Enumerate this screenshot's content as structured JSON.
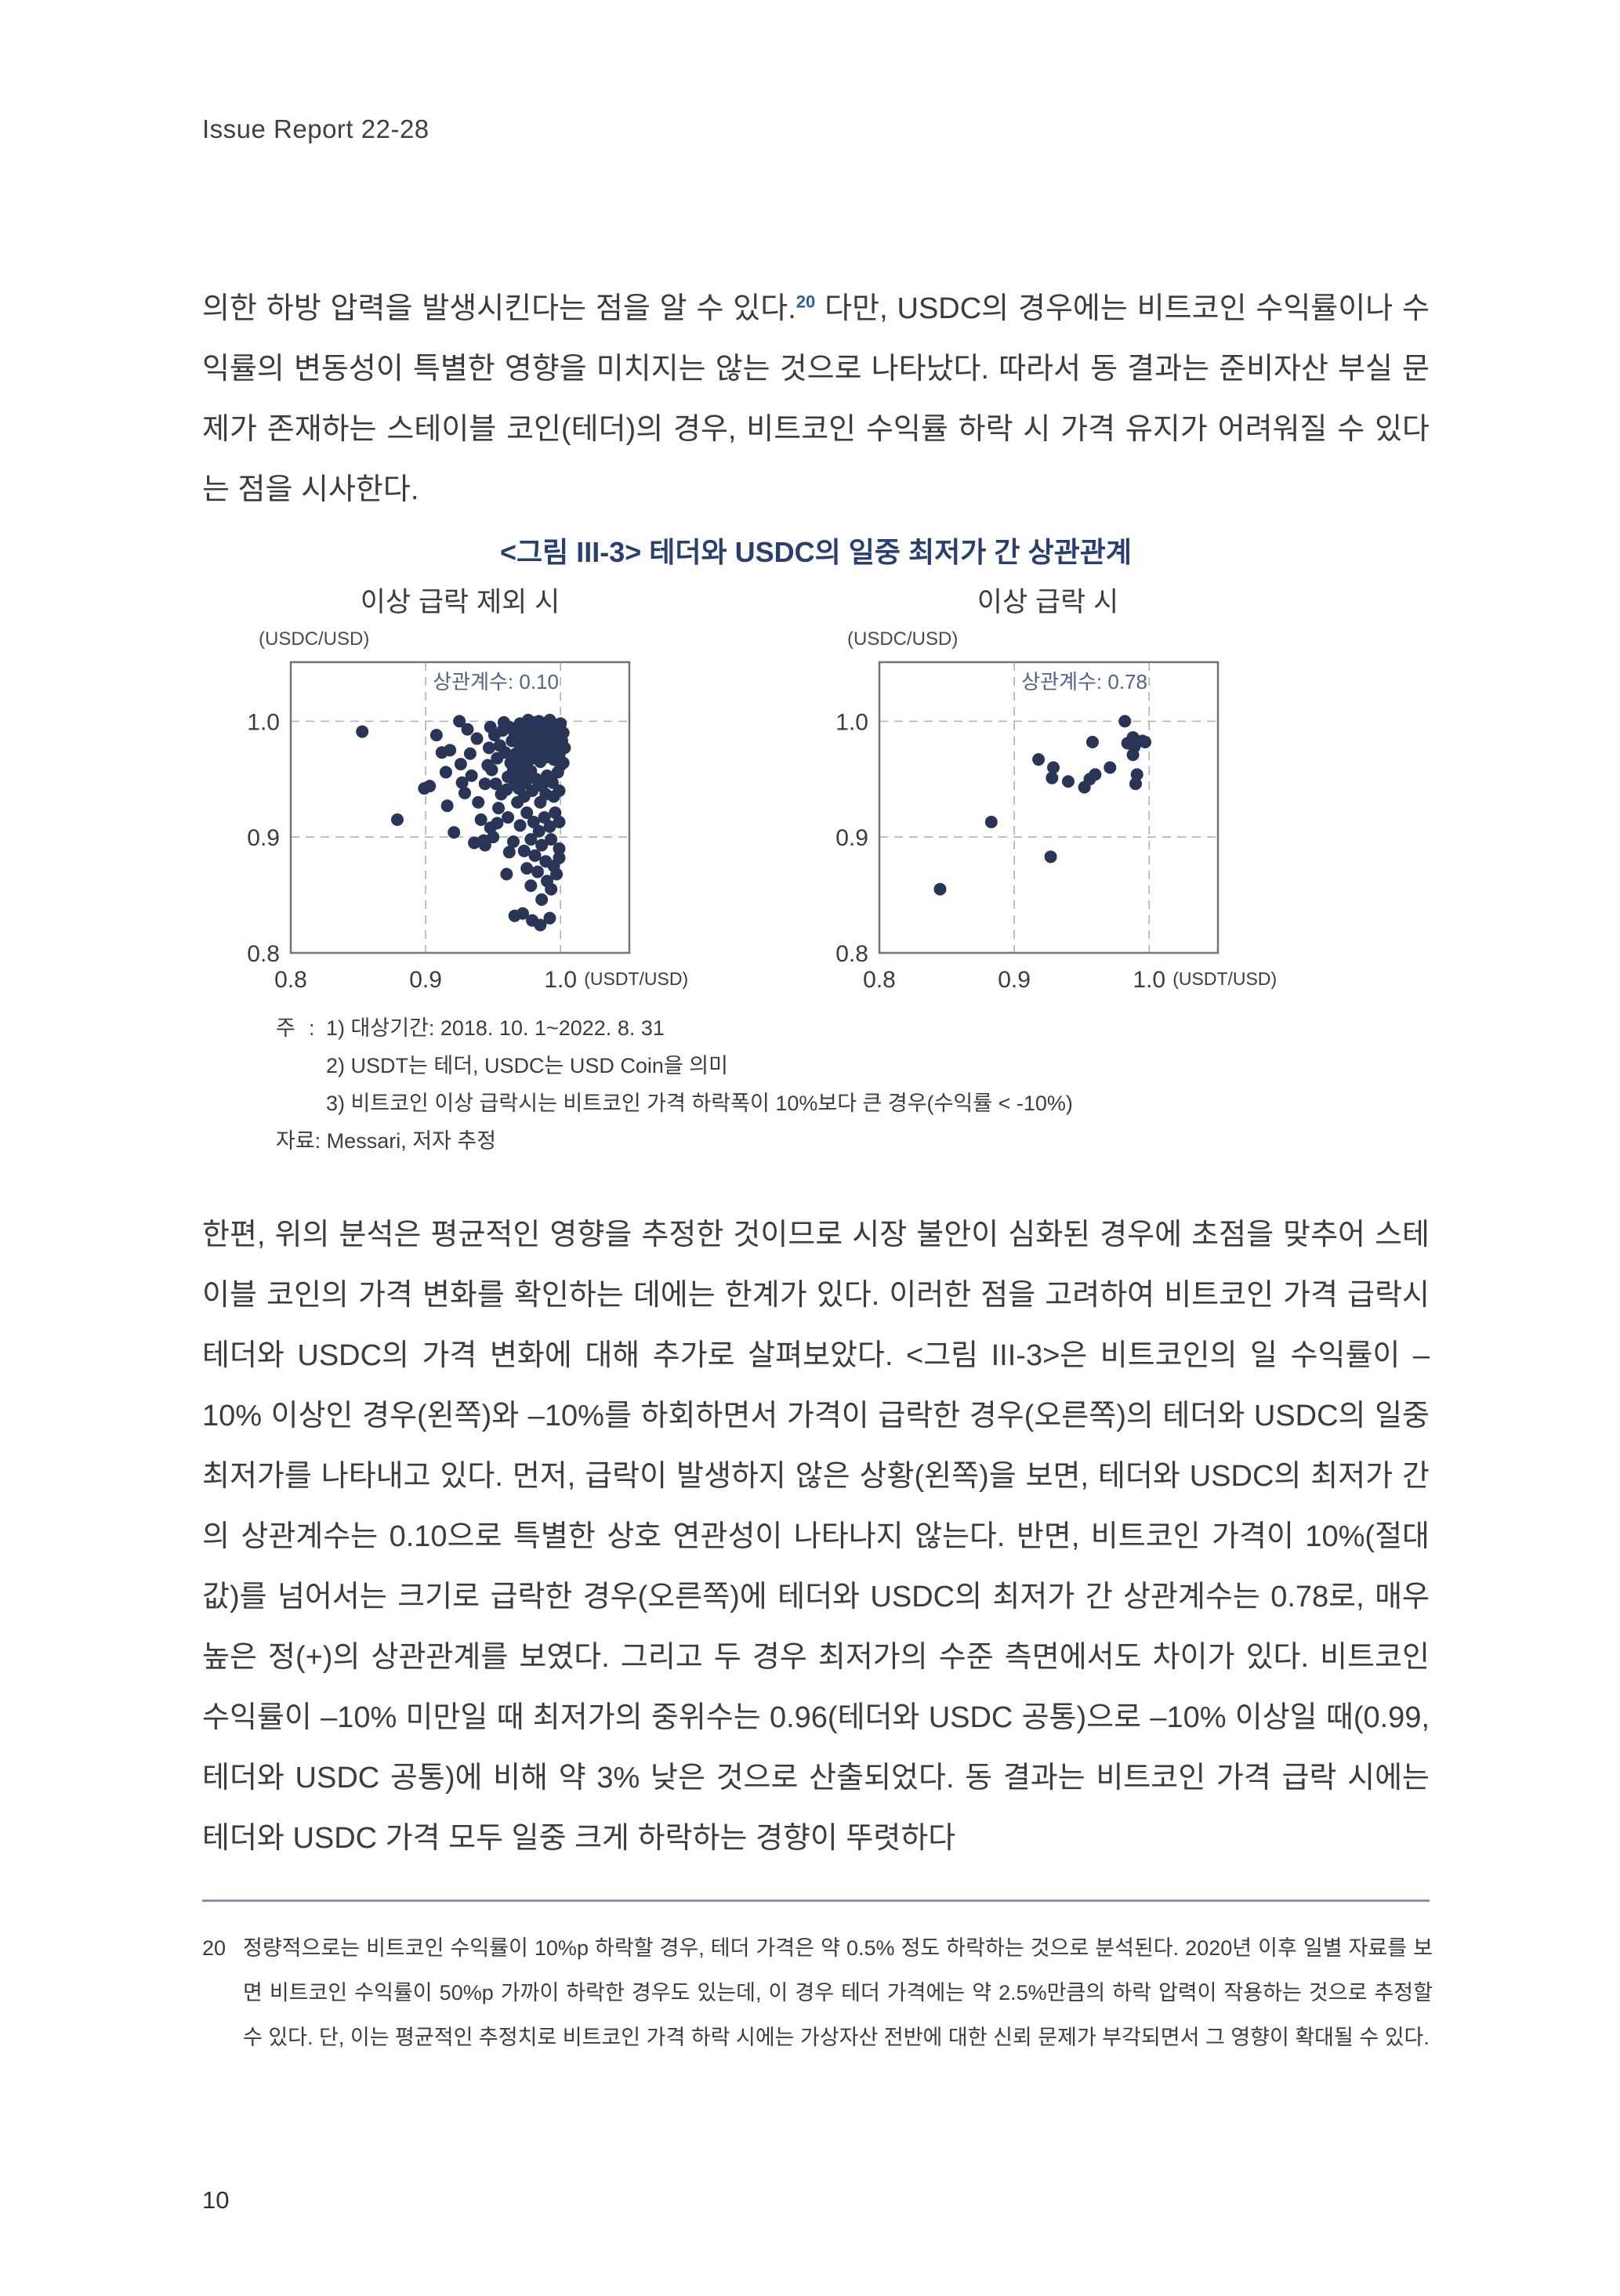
{
  "page": {
    "header": "Issue Report 22-28",
    "number": "10"
  },
  "paragraph1": {
    "before": "의한 하방 압력을 발생시킨다는 점을 알 수 있다.",
    "footnote_ref": "20",
    "after": " 다만, USDC의 경우에는 비트코인 수익률이나 수익률의 변동성이 특별한 영향을 미치지는 않는 것으로 나타났다. 따라서 동 결과는 준비자산 부실 문제가 존재하는 스테이블 코인(테더)의 경우, 비트코인 수익률 하락 시 가격 유지가 어려워질 수 있다는 점을 시사한다."
  },
  "figure": {
    "title": "<그림 III-3> 테더와 USDC의 일중 최저가 간 상관관계",
    "notes": {
      "label": "주",
      "colon": ":",
      "lines": [
        "1) 대상기간: 2018. 10. 1~2022. 8. 31",
        "2) USDT는 테더, USDC는 USD Coin을 의미",
        "3) 비트코인 이상 급락시는 비트코인 가격 하락폭이 10%보다 큰 경우(수익률 < -10%)"
      ],
      "source": "자료: Messari, 저자 추정"
    }
  },
  "chart_data": [
    {
      "type": "scatter",
      "title": "이상 급락 제외 시",
      "y_unit": "(USDC/USD)",
      "x_unit": "(USDT/USD)",
      "annotation": "상관계수: 0.10",
      "annotation_at": [
        0.952,
        1.028
      ],
      "xlim": [
        0.8,
        1.051
      ],
      "ylim": [
        0.8,
        1.051
      ],
      "xticks": [
        0.8,
        0.9,
        1.0
      ],
      "xtick_labels": [
        "0.8",
        "0.9",
        "1.0"
      ],
      "yticks": [
        0.8,
        0.9,
        1.0
      ],
      "ytick_labels": [
        "0.8",
        "0.9",
        "1.0"
      ],
      "grid_ticks": [
        0.9,
        1.0
      ],
      "grid": true,
      "colors": {
        "dot": "#293556",
        "frame": "#757575",
        "grid": "#b0b0b0",
        "text": "#3c3c3c",
        "annotation": "#526189"
      },
      "points": [
        [
          0.853,
          0.991
        ],
        [
          0.879,
          0.915
        ],
        [
          0.908,
          0.988
        ],
        [
          0.912,
          0.973
        ],
        [
          0.915,
          0.956
        ],
        [
          0.899,
          0.942
        ],
        [
          0.903,
          0.944
        ],
        [
          0.916,
          0.927
        ],
        [
          0.921,
          0.904
        ],
        [
          0.925,
          1.0
        ],
        [
          0.931,
          0.993
        ],
        [
          0.936,
          0.895
        ],
        [
          0.943,
          0.897
        ],
        [
          0.918,
          0.975
        ],
        [
          0.927,
          0.947
        ],
        [
          0.929,
          0.938
        ],
        [
          0.934,
          0.953
        ],
        [
          0.926,
          0.963
        ],
        [
          0.939,
          0.93
        ],
        [
          0.941,
          0.915
        ],
        [
          0.944,
          0.946
        ],
        [
          0.946,
          0.962
        ],
        [
          0.947,
          0.977
        ],
        [
          0.938,
          0.985
        ],
        [
          0.933,
          0.972
        ],
        [
          0.948,
          0.995
        ],
        [
          0.951,
          0.988
        ],
        [
          0.953,
          0.968
        ],
        [
          0.955,
          0.979
        ],
        [
          0.957,
          0.992
        ],
        [
          0.959,
          0.973
        ],
        [
          0.949,
          0.958
        ],
        [
          0.952,
          0.946
        ],
        [
          0.956,
          0.937
        ],
        [
          0.961,
          0.952
        ],
        [
          0.963,
          0.964
        ],
        [
          0.964,
          0.983
        ],
        [
          0.958,
          0.999
        ],
        [
          0.962,
          0.995
        ],
        [
          0.966,
          0.989
        ],
        [
          0.954,
          0.925
        ],
        [
          0.96,
          0.941
        ],
        [
          0.965,
          0.958
        ],
        [
          0.967,
          0.972
        ],
        [
          0.969,
          0.981
        ],
        [
          0.95,
          0.9
        ],
        [
          0.944,
          0.893
        ],
        [
          0.962,
          0.887
        ],
        [
          0.968,
          0.93
        ],
        [
          0.971,
          0.945
        ],
        [
          0.97,
          0.998
        ],
        [
          0.972,
          0.991
        ],
        [
          0.974,
          0.985
        ],
        [
          0.976,
          0.996
        ],
        [
          0.978,
          0.989
        ],
        [
          0.98,
          0.999
        ],
        [
          0.982,
          0.993
        ],
        [
          0.984,
          0.987
        ],
        [
          0.986,
          0.997
        ],
        [
          0.988,
          0.991
        ],
        [
          0.99,
          0.999
        ],
        [
          0.992,
          0.994
        ],
        [
          0.994,
          0.988
        ],
        [
          0.996,
          0.997
        ],
        [
          0.998,
          0.992
        ],
        [
          1.0,
          0.998
        ],
        [
          0.971,
          0.978
        ],
        [
          0.973,
          0.97
        ],
        [
          0.975,
          0.963
        ],
        [
          0.977,
          0.975
        ],
        [
          0.979,
          0.968
        ],
        [
          0.981,
          0.979
        ],
        [
          0.983,
          0.972
        ],
        [
          0.985,
          0.965
        ],
        [
          0.987,
          0.976
        ],
        [
          0.989,
          0.969
        ],
        [
          0.991,
          0.98
        ],
        [
          0.993,
          0.974
        ],
        [
          0.995,
          0.967
        ],
        [
          0.997,
          0.978
        ],
        [
          0.999,
          0.971
        ],
        [
          1.001,
          0.983
        ],
        [
          0.97,
          0.955
        ],
        [
          0.974,
          0.948
        ],
        [
          0.978,
          0.957
        ],
        [
          0.982,
          0.95
        ],
        [
          0.986,
          0.944
        ],
        [
          0.99,
          0.953
        ],
        [
          0.994,
          0.947
        ],
        [
          0.998,
          0.956
        ],
        [
          1.0,
          0.962
        ],
        [
          0.968,
          0.962
        ],
        [
          0.966,
          0.947
        ],
        [
          0.996,
          0.985
        ],
        [
          0.988,
          0.983
        ],
        [
          0.984,
          1.0
        ],
        [
          0.992,
          1.001
        ],
        [
          0.976,
          1.001
        ],
        [
          0.968,
          0.993
        ],
        [
          1.002,
          0.99
        ],
        [
          1.003,
          0.977
        ],
        [
          1.002,
          0.964
        ],
        [
          0.999,
          0.94
        ],
        [
          0.995,
          0.935
        ],
        [
          0.989,
          0.937
        ],
        [
          0.985,
          0.93
        ],
        [
          0.979,
          0.94
        ],
        [
          0.973,
          0.935
        ],
        [
          0.969,
          0.942
        ],
        [
          0.961,
          0.917
        ],
        [
          0.97,
          0.91
        ],
        [
          0.975,
          0.921
        ],
        [
          0.98,
          0.913
        ],
        [
          0.984,
          0.905
        ],
        [
          0.988,
          0.917
        ],
        [
          0.992,
          0.909
        ],
        [
          0.996,
          0.921
        ],
        [
          0.999,
          0.913
        ],
        [
          0.978,
          0.898
        ],
        [
          0.986,
          0.893
        ],
        [
          0.993,
          0.898
        ],
        [
          0.999,
          0.89
        ],
        [
          0.965,
          0.896
        ],
        [
          0.973,
          0.888
        ],
        [
          0.981,
          0.884
        ],
        [
          0.989,
          0.879
        ],
        [
          0.995,
          0.875
        ],
        [
          0.999,
          0.882
        ],
        [
          0.96,
          0.868
        ],
        [
          0.978,
          0.858
        ],
        [
          0.975,
          0.873
        ],
        [
          0.983,
          0.87
        ],
        [
          0.99,
          0.862
        ],
        [
          0.997,
          0.868
        ],
        [
          0.993,
          0.855
        ],
        [
          0.986,
          0.846
        ],
        [
          0.966,
          0.832
        ],
        [
          0.972,
          0.834
        ],
        [
          0.979,
          0.828
        ],
        [
          0.985,
          0.824
        ],
        [
          0.992,
          0.83
        ],
        [
          0.948,
          0.908
        ],
        [
          0.953,
          0.912
        ]
      ]
    },
    {
      "type": "scatter",
      "title": "이상 급락 시",
      "y_unit": "(USDC/USD)",
      "x_unit": "(USDT/USD)",
      "annotation": "상관계수: 0.78",
      "annotation_at": [
        0.952,
        1.028
      ],
      "xlim": [
        0.8,
        1.051
      ],
      "ylim": [
        0.8,
        1.051
      ],
      "xticks": [
        0.8,
        0.9,
        1.0
      ],
      "xtick_labels": [
        "0.8",
        "0.9",
        "1.0"
      ],
      "yticks": [
        0.8,
        0.9,
        1.0
      ],
      "ytick_labels": [
        "0.8",
        "0.9",
        "1.0"
      ],
      "grid_ticks": [
        0.9,
        1.0
      ],
      "grid": true,
      "colors": {
        "dot": "#293556",
        "frame": "#757575",
        "grid": "#b0b0b0",
        "text": "#3c3c3c",
        "annotation": "#526189"
      },
      "points": [
        [
          0.845,
          0.855
        ],
        [
          0.883,
          0.913
        ],
        [
          0.927,
          0.883
        ],
        [
          0.918,
          0.967
        ],
        [
          0.929,
          0.96
        ],
        [
          0.928,
          0.951
        ],
        [
          0.94,
          0.948
        ],
        [
          0.952,
          0.943
        ],
        [
          0.956,
          0.95
        ],
        [
          0.96,
          0.954
        ],
        [
          0.958,
          0.982
        ],
        [
          0.971,
          0.96
        ],
        [
          0.982,
          1.0
        ],
        [
          0.984,
          0.981
        ],
        [
          0.988,
          0.986
        ],
        [
          0.989,
          0.978
        ],
        [
          0.988,
          0.971
        ],
        [
          0.991,
          0.954
        ],
        [
          0.99,
          0.946
        ],
        [
          0.995,
          0.983
        ],
        [
          0.997,
          0.982
        ]
      ]
    }
  ],
  "paragraph2": "한편, 위의 분석은 평균적인 영향을 추정한 것이므로 시장 불안이 심화된 경우에 초점을 맞추어 스테이블 코인의 가격 변화를 확인하는 데에는 한계가 있다. 이러한 점을 고려하여 비트코인 가격 급락시 테더와 USDC의 가격 변화에 대해 추가로 살펴보았다. <그림 III-3>은 비트코인의 일 수익률이 –10% 이상인 경우(왼쪽)와 –10%를 하회하면서 가격이 급락한 경우(오른쪽)의 테더와 USDC의 일중 최저가를 나타내고 있다. 먼저, 급락이 발생하지 않은 상황(왼쪽)을 보면, 테더와 USDC의 최저가 간의 상관계수는 0.10으로 특별한 상호 연관성이 나타나지 않는다. 반면, 비트코인 가격이 10%(절대값)를 넘어서는 크기로 급락한 경우(오른쪽)에 테더와 USDC의 최저가 간 상관계수는 0.78로, 매우 높은 정(+)의 상관관계를 보였다. 그리고 두 경우 최저가의 수준 측면에서도 차이가 있다. 비트코인 수익률이 –10% 미만일 때 최저가의 중위수는 0.96(테더와 USDC 공통)으로 –10% 이상일 때(0.99, 테더와 USDC 공통)에 비해 약 3% 낮은 것으로 산출되었다. 동 결과는 비트코인 가격 급락 시에는 테더와 USDC 가격 모두 일중 크게 하락하는 경향이 뚜렷하다",
  "footnote": {
    "marker": "20",
    "text": "정량적으로는 비트코인 수익률이 10%p 하락할 경우, 테더 가격은 약 0.5% 정도 하락하는 것으로 분석된다. 2020년 이후 일별 자료를 보면 비트코인 수익률이 50%p 가까이 하락한 경우도 있는데, 이 경우 테더 가격에는 약 2.5%만큼의 하락 압력이 작용하는 것으로 추정할 수 있다. 단, 이는 평균적인 추정치로 비트코인 가격 하락 시에는 가상자산 전반에 대한 신뢰 문제가 부각되면서 그 영향이 확대될 수 있다."
  }
}
